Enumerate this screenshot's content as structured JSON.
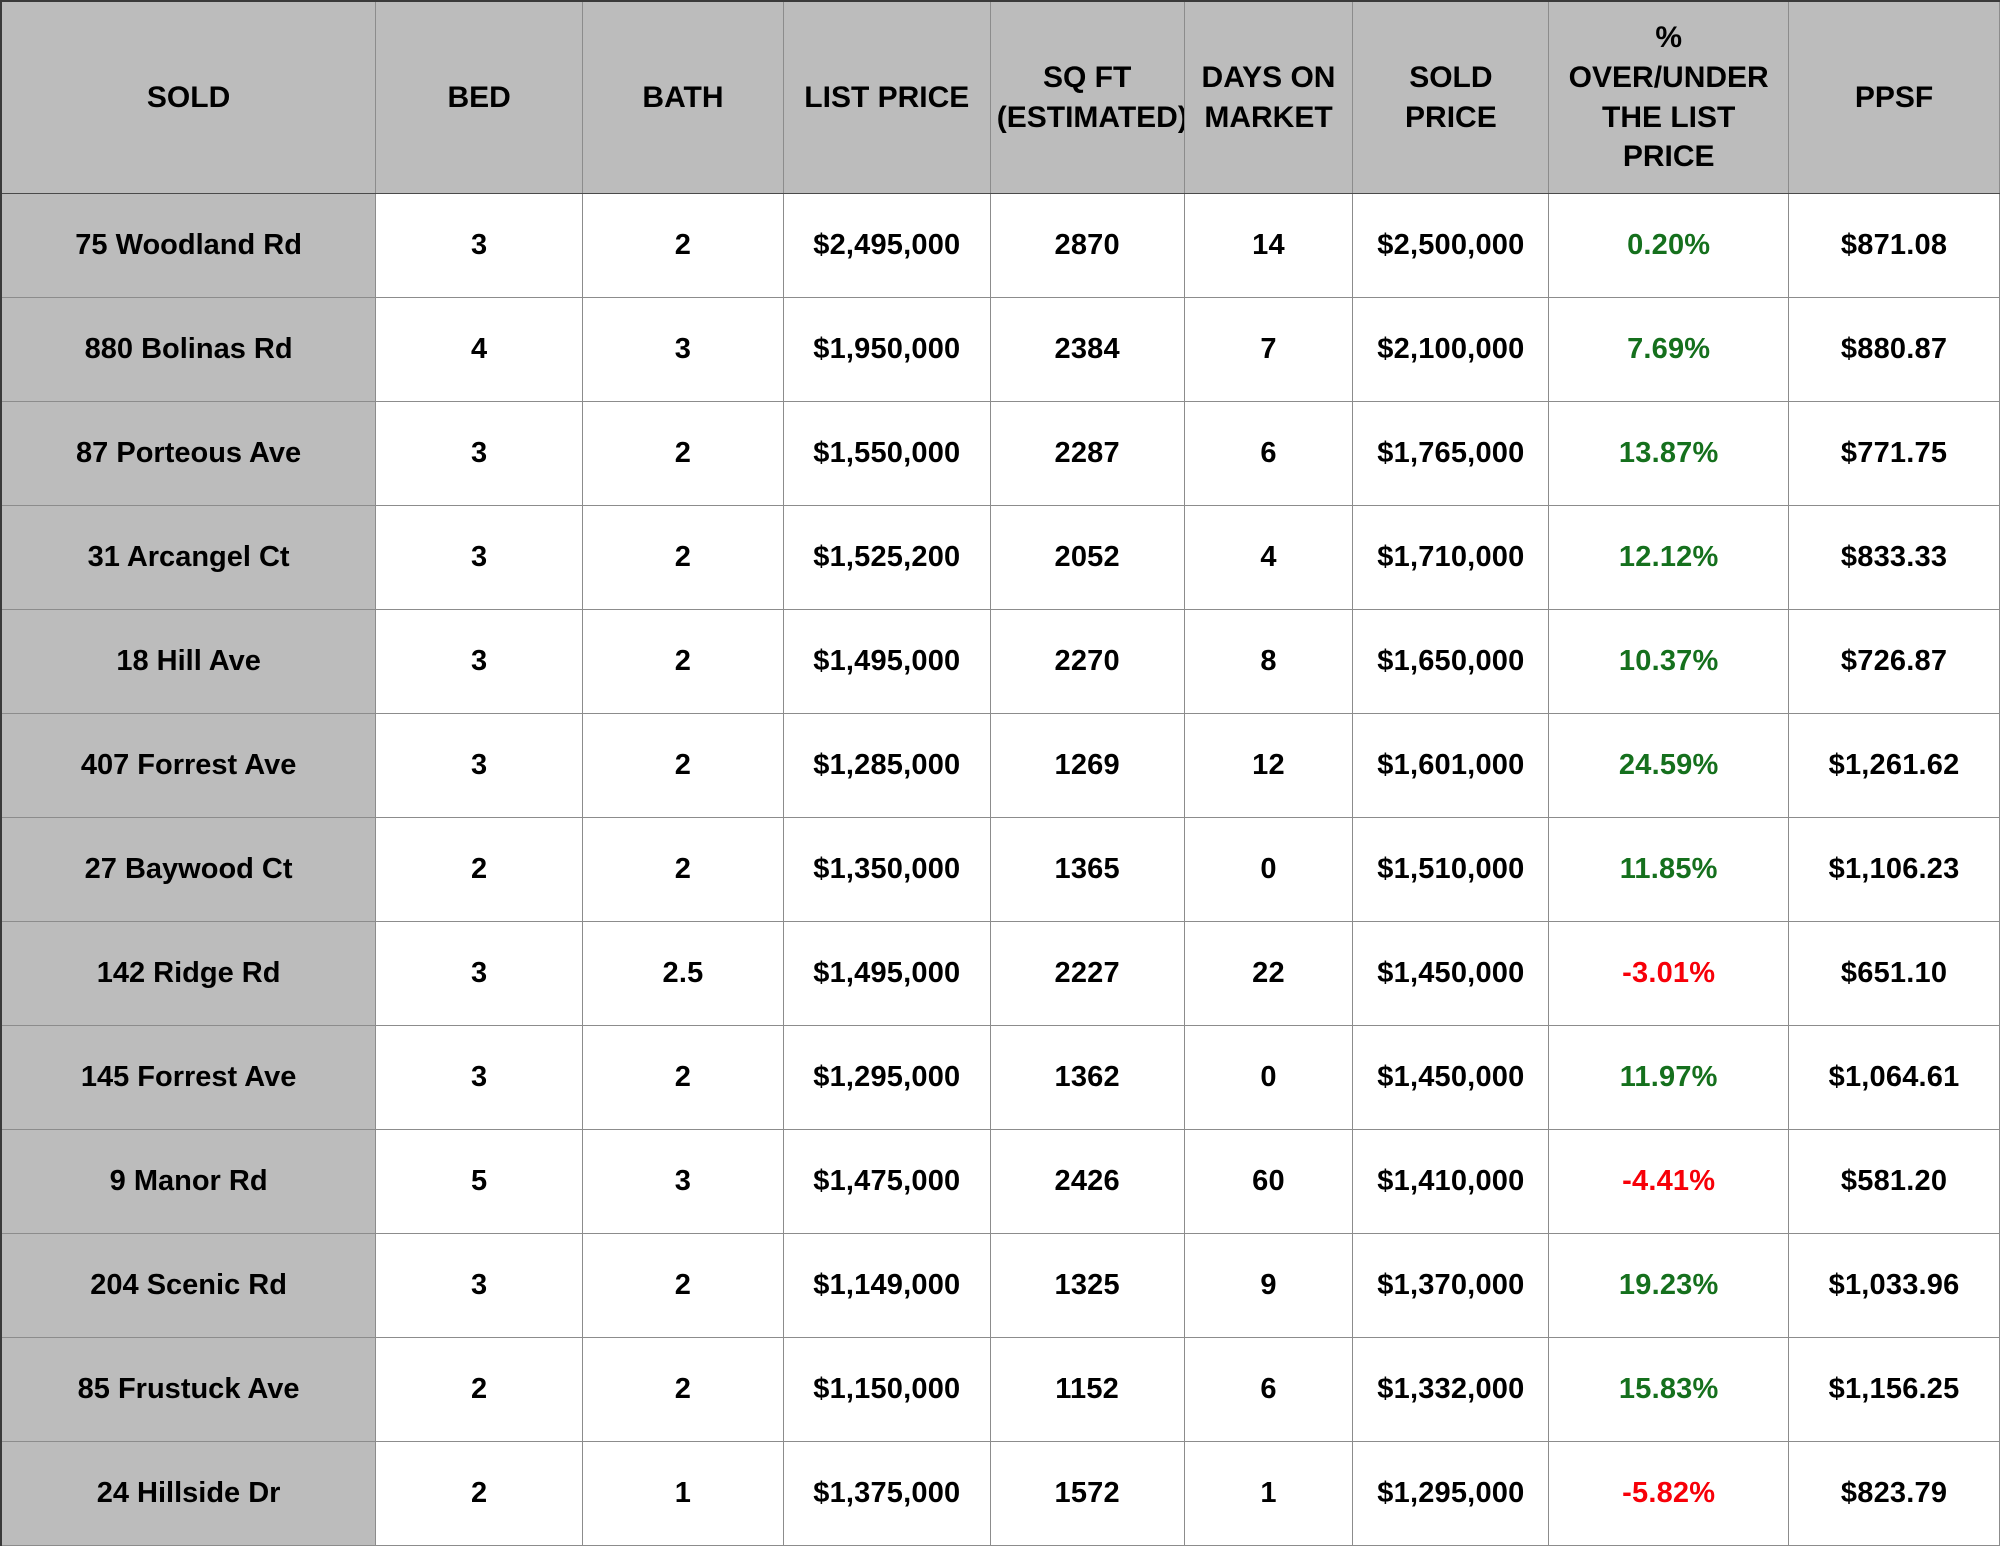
{
  "colors": {
    "header_bg": "#bcbcbc",
    "row_label_bg": "#bcbcbc",
    "cell_bg": "#ffffff",
    "text": "#000000",
    "positive_pct": "#15701d",
    "negative_pct": "#f70008",
    "grid_line": "#8c8c8c"
  },
  "table": {
    "columns": [
      {
        "key": "address",
        "label": "SOLD"
      },
      {
        "key": "bed",
        "label": "BED"
      },
      {
        "key": "bath",
        "label": "BATH"
      },
      {
        "key": "list_price",
        "label": "LIST PRICE"
      },
      {
        "key": "sqft",
        "label": "SQ FT\n(ESTIMATED)"
      },
      {
        "key": "dom",
        "label": "DAYS ON\nMARKET"
      },
      {
        "key": "sold_price",
        "label": "SOLD PRICE"
      },
      {
        "key": "pct",
        "label": "%\nOVER/UNDER\nTHE LIST\nPRICE"
      },
      {
        "key": "ppsf",
        "label": "PPSF"
      }
    ],
    "rows": [
      {
        "address": "75 Woodland Rd",
        "bed": "3",
        "bath": "2",
        "list_price": "$2,495,000",
        "sqft": "2870",
        "dom": "14",
        "sold_price": "$2,500,000",
        "pct": "0.20%",
        "ppsf": "$871.08"
      },
      {
        "address": "880 Bolinas Rd",
        "bed": "4",
        "bath": "3",
        "list_price": "$1,950,000",
        "sqft": "2384",
        "dom": "7",
        "sold_price": "$2,100,000",
        "pct": "7.69%",
        "ppsf": "$880.87"
      },
      {
        "address": "87 Porteous Ave",
        "bed": "3",
        "bath": "2",
        "list_price": "$1,550,000",
        "sqft": "2287",
        "dom": "6",
        "sold_price": "$1,765,000",
        "pct": "13.87%",
        "ppsf": "$771.75"
      },
      {
        "address": "31 Arcangel Ct",
        "bed": "3",
        "bath": "2",
        "list_price": "$1,525,200",
        "sqft": "2052",
        "dom": "4",
        "sold_price": "$1,710,000",
        "pct": "12.12%",
        "ppsf": "$833.33"
      },
      {
        "address": "18 Hill Ave",
        "bed": "3",
        "bath": "2",
        "list_price": "$1,495,000",
        "sqft": "2270",
        "dom": "8",
        "sold_price": "$1,650,000",
        "pct": "10.37%",
        "ppsf": "$726.87"
      },
      {
        "address": "407 Forrest Ave",
        "bed": "3",
        "bath": "2",
        "list_price": "$1,285,000",
        "sqft": "1269",
        "dom": "12",
        "sold_price": "$1,601,000",
        "pct": "24.59%",
        "ppsf": "$1,261.62"
      },
      {
        "address": "27 Baywood Ct",
        "bed": "2",
        "bath": "2",
        "list_price": "$1,350,000",
        "sqft": "1365",
        "dom": "0",
        "sold_price": "$1,510,000",
        "pct": "11.85%",
        "ppsf": "$1,106.23"
      },
      {
        "address": "142 Ridge Rd",
        "bed": "3",
        "bath": "2.5",
        "list_price": "$1,495,000",
        "sqft": "2227",
        "dom": "22",
        "sold_price": "$1,450,000",
        "pct": "-3.01%",
        "ppsf": "$651.10"
      },
      {
        "address": "145 Forrest Ave",
        "bed": "3",
        "bath": "2",
        "list_price": "$1,295,000",
        "sqft": "1362",
        "dom": "0",
        "sold_price": "$1,450,000",
        "pct": "11.97%",
        "ppsf": "$1,064.61"
      },
      {
        "address": "9 Manor Rd",
        "bed": "5",
        "bath": "3",
        "list_price": "$1,475,000",
        "sqft": "2426",
        "dom": "60",
        "sold_price": "$1,410,000",
        "pct": "-4.41%",
        "ppsf": "$581.20"
      },
      {
        "address": "204 Scenic Rd",
        "bed": "3",
        "bath": "2",
        "list_price": "$1,149,000",
        "sqft": "1325",
        "dom": "9",
        "sold_price": "$1,370,000",
        "pct": "19.23%",
        "ppsf": "$1,033.96"
      },
      {
        "address": "85 Frustuck Ave",
        "bed": "2",
        "bath": "2",
        "list_price": "$1,150,000",
        "sqft": "1152",
        "dom": "6",
        "sold_price": "$1,332,000",
        "pct": "15.83%",
        "ppsf": "$1,156.25"
      },
      {
        "address": "24 Hillside Dr",
        "bed": "2",
        "bath": "1",
        "list_price": "$1,375,000",
        "sqft": "1572",
        "dom": "1",
        "sold_price": "$1,295,000",
        "pct": "-5.82%",
        "ppsf": "$823.79"
      }
    ]
  }
}
